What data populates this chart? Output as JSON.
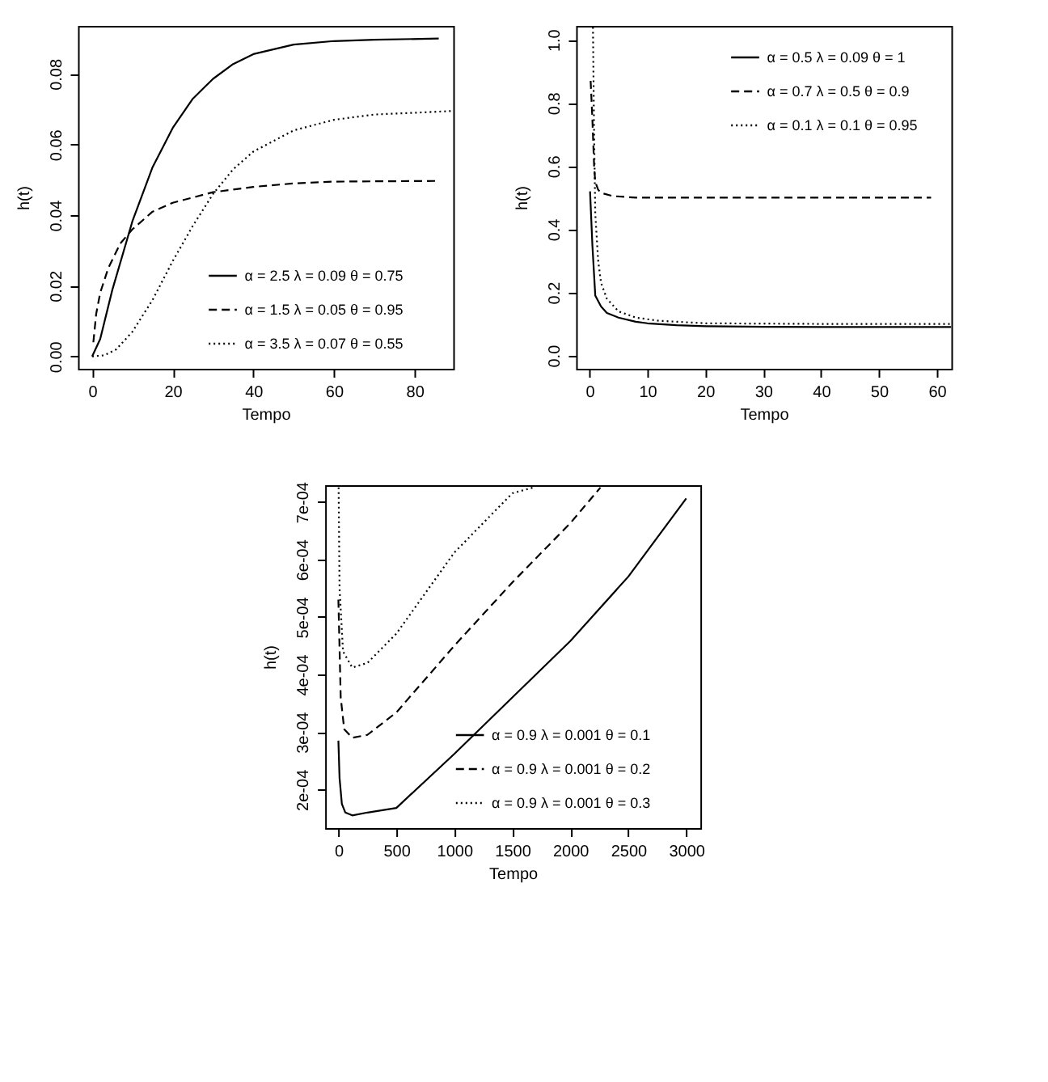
{
  "chart_data": [
    {
      "type": "line",
      "xlabel": "Tempo",
      "ylabel": "h(t)",
      "xlim": [
        -3.5,
        89.6
      ],
      "ylim": [
        -0.0035,
        0.0936
      ],
      "xticks": [
        0,
        20,
        40,
        60,
        80
      ],
      "yticks": [
        {
          "value": 0,
          "label": "0.00"
        },
        0.02,
        0.04,
        0.06,
        0.08
      ],
      "grid": false,
      "legend": "bottom right",
      "series": [
        {
          "name": "α = 2.5     λ = 0.09     θ = 0.75",
          "color": "#000000",
          "line_style": "solid",
          "x": [
            0,
            2,
            5,
            10,
            15,
            20,
            25,
            30,
            35,
            40,
            50,
            60,
            70,
            86
          ],
          "values": [
            0,
            0.0049,
            0.0188,
            0.0383,
            0.0536,
            0.0647,
            0.073,
            0.0786,
            0.0828,
            0.0856,
            0.0883,
            0.0893,
            0.0897,
            0.09
          ]
        },
        {
          "name": "α = 1.5     λ = 0.05     θ = 0.95",
          "color": "#000000",
          "line_style": "dashed",
          "x": [
            0.3,
            1,
            2,
            4,
            7,
            10,
            15,
            20,
            30,
            40,
            50,
            60,
            86
          ],
          "values": [
            0.004,
            0.012,
            0.018,
            0.025,
            0.032,
            0.036,
            0.041,
            0.0435,
            0.0465,
            0.048,
            0.049,
            0.0495,
            0.0497
          ]
        },
        {
          "name": "α = 3.5     λ = 0.07     θ = 0.55",
          "color": "#000000",
          "line_style": "dotted",
          "x": [
            0,
            3,
            6,
            10,
            15,
            20,
            25,
            30,
            35,
            40,
            50,
            60,
            70,
            80,
            89.5
          ],
          "values": [
            0,
            0.0003,
            0.002,
            0.007,
            0.016,
            0.027,
            0.037,
            0.046,
            0.053,
            0.058,
            0.064,
            0.067,
            0.0685,
            0.069,
            0.0695
          ]
        }
      ]
    },
    {
      "type": "line",
      "xlabel": "Tempo",
      "ylabel": "h(t)",
      "xlim": [
        -2.3,
        62.5
      ],
      "ylim": [
        -0.042,
        1.044
      ],
      "xticks": [
        0,
        10,
        20,
        30,
        40,
        50,
        60
      ],
      "yticks": [
        {
          "value": 0,
          "label": "0.0"
        },
        0.2,
        0.4,
        0.6,
        0.8,
        {
          "value": 1,
          "label": "1.0"
        }
      ],
      "grid": false,
      "legend": "top right",
      "series": [
        {
          "name": "α = 0.5  λ = 0.09  θ = 1",
          "color": "#000000",
          "line_style": "solid",
          "x": [
            0.1,
            0.5,
            1,
            2,
            3,
            5,
            8,
            10,
            15,
            20,
            30,
            45,
            62.5
          ],
          "values": [
            0.52,
            0.35,
            0.19,
            0.155,
            0.135,
            0.12,
            0.107,
            0.102,
            0.096,
            0.093,
            0.091,
            0.09,
            0.09
          ]
        },
        {
          "name": "α = 0.7  λ = 0.5    θ = 0.9",
          "color": "#000000",
          "line_style": "dashed",
          "x": [
            0.2,
            0.5,
            0.8,
            1,
            1.5,
            2,
            4,
            8,
            59
          ],
          "values": [
            0.87,
            0.75,
            0.6,
            0.55,
            0.525,
            0.515,
            0.505,
            0.5,
            0.5
          ]
        },
        {
          "name": "α = 0.1  λ = 0.1    θ = 0.95",
          "color": "#000000",
          "line_style": "dotted",
          "x": [
            0.6,
            0.8,
            1,
            1.5,
            2,
            3,
            5,
            8,
            12,
            20,
            40,
            62.5
          ],
          "values": [
            1.04,
            0.7,
            0.45,
            0.3,
            0.23,
            0.18,
            0.14,
            0.12,
            0.11,
            0.102,
            0.1,
            0.1
          ]
        }
      ]
    },
    {
      "type": "line",
      "xlabel": "Tempo",
      "ylabel": "h(t)",
      "xlim": [
        -114,
        3122
      ],
      "ylim": [
        0.000133,
        0.000729
      ],
      "xticks": [
        0,
        500,
        1000,
        1500,
        2000,
        2500,
        3000
      ],
      "yticks": [
        {
          "value": 0.0002,
          "label": "2e-04"
        },
        {
          "value": 0.0003,
          "label": "3e-04"
        },
        {
          "value": 0.0004,
          "label": "4e-04"
        },
        {
          "value": 0.0005,
          "label": "5e-04"
        },
        {
          "value": 0.0006,
          "label": "6e-04"
        },
        {
          "value": 0.0007,
          "label": "7e-04"
        }
      ],
      "grid": false,
      "legend": "bottom right",
      "series": [
        {
          "name": "α = 0.9     λ = 0.001     θ = 0.1",
          "color": "#000000",
          "line_style": "solid",
          "x": [
            0,
            10,
            30,
            60,
            120,
            250,
            500,
            1000,
            1500,
            2000,
            2500,
            3000
          ],
          "values": [
            0.000285,
            0.00022,
            0.000175,
            0.00016,
            0.000155,
            0.00016,
            0.000168,
            0.000262,
            0.00036,
            0.000458,
            0.00057,
            0.000706
          ]
        },
        {
          "name": "α = 0.9     λ = 0.001     θ = 0.2",
          "color": "#000000",
          "line_style": "dashed",
          "x": [
            0,
            20,
            50,
            120,
            250,
            500,
            1000,
            1500,
            2000,
            2260
          ],
          "values": [
            0.00053,
            0.00036,
            0.000305,
            0.00029,
            0.000295,
            0.000334,
            0.00045,
            0.00056,
            0.000663,
            0.000725
          ]
        },
        {
          "name": "α = 0.9     λ = 0.001     θ = 0.3",
          "color": "#000000",
          "line_style": "dotted",
          "x": [
            2,
            10,
            40,
            120,
            250,
            500,
            1000,
            1500,
            1680
          ],
          "values": [
            0.000725,
            0.00055,
            0.00044,
            0.000412,
            0.00042,
            0.000471,
            0.000612,
            0.000715,
            0.000725
          ]
        }
      ]
    }
  ]
}
